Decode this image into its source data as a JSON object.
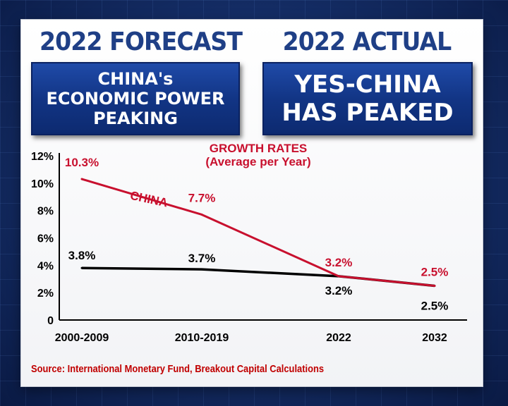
{
  "left_panel": {
    "heading": "2022 FORECAST",
    "box_lines": [
      "CHINA's",
      "ECONOMIC POWER",
      "PEAKING"
    ]
  },
  "right_panel": {
    "heading": "2022 ACTUAL",
    "box_lines": [
      "YES-CHINA",
      "HAS PEAKED"
    ]
  },
  "source": "Source: International Monetary Fund, Breakout Capital Calculations",
  "colors": {
    "heading": "#1f3f86",
    "box_bg": "#123585",
    "china_line": "#c8102e",
    "other_line": "#000000",
    "source_text": "#c00000"
  },
  "chart_data": {
    "type": "line",
    "title": "GROWTH RATES",
    "subtitle": "(Average per Year)",
    "categories": [
      "2000-2009",
      "2010-2019",
      "2022",
      "2032"
    ],
    "y_ticks": [
      "0",
      "2%",
      "4%",
      "6%",
      "8%",
      "10%",
      "12%"
    ],
    "ylim": [
      0,
      12
    ],
    "grid": false,
    "series": [
      {
        "name": "CHINA",
        "values": [
          10.3,
          7.7,
          3.2,
          2.5
        ],
        "labels": [
          "10.3%",
          "7.7%",
          "3.2%",
          "2.5%"
        ],
        "color": "#c8102e"
      },
      {
        "values": [
          3.8,
          3.7,
          3.2,
          2.5
        ],
        "labels": [
          "3.8%",
          "3.7%",
          "3.2%",
          "2.5%"
        ],
        "color": "#000000"
      }
    ]
  }
}
